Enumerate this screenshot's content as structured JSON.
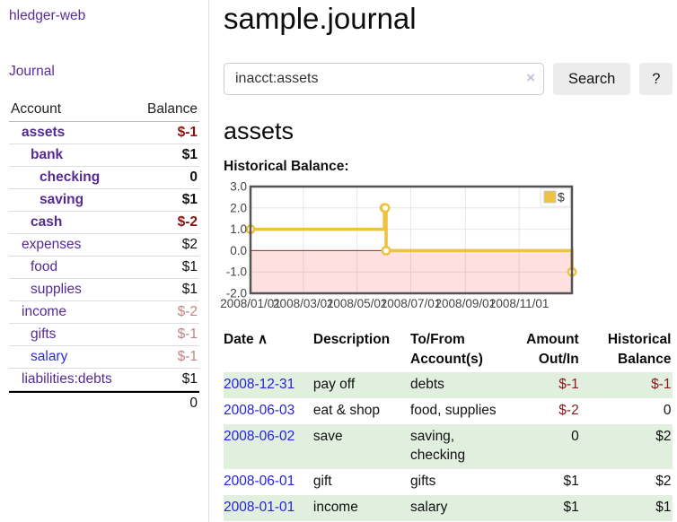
{
  "sidebar": {
    "brand": "hledger-web",
    "nav_journal": "Journal",
    "accounts": {
      "header_account": "Account",
      "header_balance": "Balance",
      "rows": [
        {
          "name": "assets",
          "balance": "$-1"
        },
        {
          "name": "bank",
          "balance": "$1"
        },
        {
          "name": "checking",
          "balance": "0"
        },
        {
          "name": "saving",
          "balance": "$1"
        },
        {
          "name": "cash",
          "balance": "$-2"
        },
        {
          "name": "expenses",
          "balance": "$2"
        },
        {
          "name": "food",
          "balance": "$1"
        },
        {
          "name": "supplies",
          "balance": "$1"
        },
        {
          "name": "income",
          "balance": "$-2"
        },
        {
          "name": "gifts",
          "balance": "$-1"
        },
        {
          "name": "salary",
          "balance": "$-1"
        },
        {
          "name": "liabilities:debts",
          "balance": "$1"
        }
      ],
      "total": "0"
    }
  },
  "main": {
    "title": "sample.journal",
    "search": {
      "value": "inacct:assets",
      "clear_icon": "×",
      "search_button": "Search",
      "help_button": "?"
    },
    "account_heading": "assets",
    "chart_heading": "Historical Balance:",
    "register": {
      "header_date": "Date",
      "sort_icon": "∧",
      "header_description": "Description",
      "header_accounts": "To/From Account(s)",
      "header_amount": "Amount Out/In",
      "header_balance": "Historical Balance",
      "rows": [
        {
          "date": "2008-12-31",
          "description": "pay off",
          "accounts": "debts",
          "amount": "$-1",
          "balance": "$-1"
        },
        {
          "date": "2008-06-03",
          "description": "eat & shop",
          "accounts": "food, supplies",
          "amount": "$-2",
          "balance": "0"
        },
        {
          "date": "2008-06-02",
          "description": "save",
          "accounts": "saving, checking",
          "amount": "0",
          "balance": "$2"
        },
        {
          "date": "2008-06-01",
          "description": "gift",
          "accounts": "gifts",
          "amount": "$1",
          "balance": "$2"
        },
        {
          "date": "2008-01-01",
          "description": "income",
          "accounts": "salary",
          "amount": "$1",
          "balance": "$1"
        }
      ]
    }
  },
  "chart_data": {
    "type": "line",
    "title": "Historical Balance:",
    "step": true,
    "series": [
      {
        "name": "$",
        "color": "#edc240",
        "points": [
          [
            "2008-01-01",
            1
          ],
          [
            "2008-06-01",
            2
          ],
          [
            "2008-06-02",
            2
          ],
          [
            "2008-06-03",
            0
          ],
          [
            "2008-12-31",
            -1
          ]
        ]
      }
    ],
    "xrange": [
      "2008-01-01",
      "2008-12-31"
    ],
    "ylim": [
      -2,
      3
    ],
    "yticks": [
      3,
      2,
      1,
      0,
      -1,
      -2
    ],
    "xtick_labels": [
      "2008/01/01",
      "2008/03/01",
      "2008/05/01",
      "2008/07/01",
      "2008/09/01",
      "2008/11/01"
    ],
    "legend_position": "top-right",
    "grid": true,
    "grid_color": "#e6e6e6",
    "border_color": "#545454",
    "tick_label_color": "#444444",
    "negative_region_fill": "rgba(255,0,0,0.12)",
    "zero_line_color": "#b22222"
  }
}
